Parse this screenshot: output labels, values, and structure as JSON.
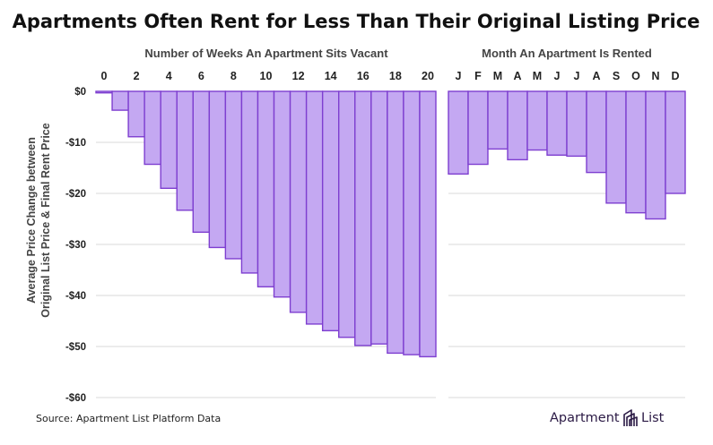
{
  "title": "Apartments Often Rent for Less Than Their Original Listing Price",
  "source": "Source: Apartment List Platform Data",
  "brand": {
    "name": "Apartment List",
    "icon": "apartment-list-logo-icon"
  },
  "colors": {
    "bar_fill": "#c4a8f2",
    "bar_stroke": "#7e3fd0",
    "grid": "#d9d9d9",
    "title": "#111111"
  },
  "y_axis": {
    "label_line1": "Average Price Change between",
    "label_line2": "Original List Price & Final Rent Price",
    "ticks": [
      "$0",
      "-$10",
      "-$20",
      "-$30",
      "-$40",
      "-$50",
      "-$60"
    ],
    "tick_values": [
      0,
      -10,
      -20,
      -30,
      -40,
      -50,
      -60
    ]
  },
  "chart_data": [
    {
      "type": "bar",
      "title": "Number of Weeks An Apartment Sits Vacant",
      "xtick_labels": [
        "0",
        "2",
        "4",
        "6",
        "8",
        "10",
        "12",
        "14",
        "16",
        "18",
        "20"
      ],
      "categories": [
        "0",
        "1",
        "2",
        "3",
        "4",
        "5",
        "6",
        "7",
        "8",
        "9",
        "10",
        "11",
        "12",
        "13",
        "14",
        "15",
        "16",
        "17",
        "18",
        "19",
        "20"
      ],
      "values": [
        -0.3,
        -3.7,
        -8.9,
        -14.3,
        -19.0,
        -23.3,
        -27.6,
        -30.6,
        -32.8,
        -35.6,
        -38.3,
        -40.3,
        -43.3,
        -45.6,
        -46.9,
        -48.2,
        -49.8,
        -49.5,
        -51.3,
        -51.6,
        -52.0
      ],
      "ylim": [
        -60,
        0
      ],
      "grid": true
    },
    {
      "type": "bar",
      "title": "Month An Apartment Is Rented",
      "xtick_labels": [
        "J",
        "F",
        "M",
        "A",
        "M",
        "J",
        "J",
        "A",
        "S",
        "O",
        "N",
        "D"
      ],
      "categories": [
        "J",
        "F",
        "M",
        "A",
        "M",
        "J",
        "J",
        "A",
        "S",
        "O",
        "N",
        "D"
      ],
      "values": [
        -16.2,
        -14.3,
        -11.3,
        -13.4,
        -11.5,
        -12.5,
        -12.7,
        -15.9,
        -21.9,
        -23.8,
        -25.0,
        -20.0
      ],
      "ylim": [
        -60,
        0
      ],
      "grid": true
    }
  ]
}
